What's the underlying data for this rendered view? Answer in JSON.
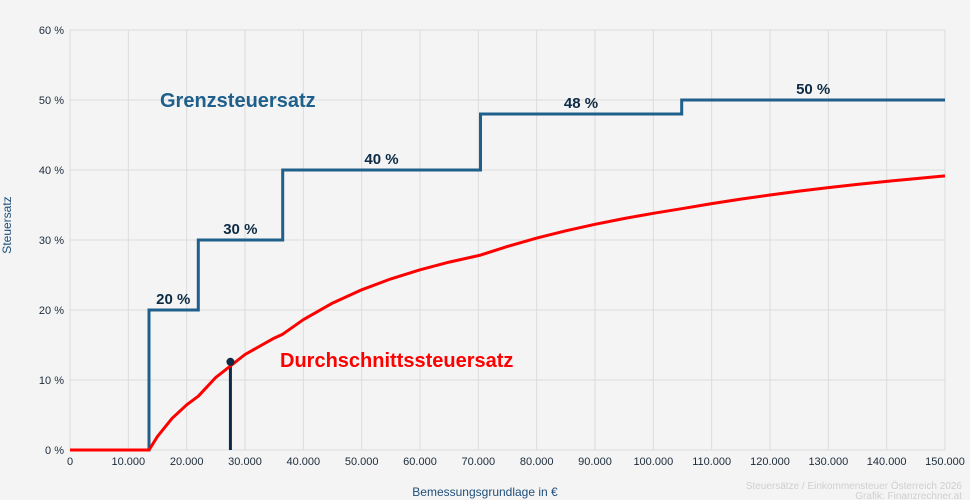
{
  "chart_data": {
    "type": "line",
    "xlabel": "Bemessungsgrundlage in €",
    "ylabel": "Steuersatz",
    "xlim": [
      0,
      150000
    ],
    "ylim": [
      0,
      60
    ],
    "grid": true,
    "x_ticks": [
      0,
      10000,
      20000,
      30000,
      40000,
      50000,
      60000,
      70000,
      80000,
      90000,
      100000,
      110000,
      120000,
      130000,
      140000,
      150000
    ],
    "x_tick_labels": [
      "0",
      "10.000",
      "20.000",
      "30.000",
      "40.000",
      "50.000",
      "60.000",
      "70.000",
      "80.000",
      "90.000",
      "100.000",
      "110.000",
      "120.000",
      "130.000",
      "140.000",
      "150.000"
    ],
    "y_ticks": [
      0,
      10,
      20,
      30,
      40,
      50,
      60
    ],
    "y_tick_labels": [
      "0 %",
      "10 %",
      "20 %",
      "30 %",
      "40 %",
      "50 %",
      "60 %"
    ],
    "series": [
      {
        "name": "Grenzsteuersatz",
        "color": "#1f5f8b",
        "step": true,
        "points": [
          [
            0,
            0
          ],
          [
            13539,
            0
          ],
          [
            13539,
            20
          ],
          [
            21992,
            20
          ],
          [
            21992,
            30
          ],
          [
            36458,
            30
          ],
          [
            36458,
            40
          ],
          [
            70365,
            40
          ],
          [
            70365,
            48
          ],
          [
            104859,
            48
          ],
          [
            104859,
            50
          ],
          [
            150000,
            50
          ]
        ],
        "step_labels": [
          {
            "text": "20 %",
            "x": 17700,
            "y": 20
          },
          {
            "text": "30 %",
            "x": 29200,
            "y": 30
          },
          {
            "text": "40 %",
            "x": 53400,
            "y": 40
          },
          {
            "text": "48 %",
            "x": 87600,
            "y": 48
          },
          {
            "text": "50 %",
            "x": 127400,
            "y": 50
          }
        ]
      },
      {
        "name": "Durchschnittssteuersatz",
        "color": "#ff0000",
        "points": [
          [
            0,
            0
          ],
          [
            13539,
            0
          ],
          [
            15000,
            1.95
          ],
          [
            17500,
            4.53
          ],
          [
            20000,
            6.46
          ],
          [
            21992,
            7.69
          ],
          [
            25000,
            10.37
          ],
          [
            30000,
            13.64
          ],
          [
            35000,
            15.98
          ],
          [
            36458,
            16.54
          ],
          [
            40000,
            18.62
          ],
          [
            45000,
            20.99
          ],
          [
            50000,
            22.89
          ],
          [
            55000,
            24.45
          ],
          [
            60000,
            25.75
          ],
          [
            65000,
            26.84
          ],
          [
            70365,
            27.85
          ],
          [
            75000,
            29.09
          ],
          [
            80000,
            30.27
          ],
          [
            85000,
            31.32
          ],
          [
            90000,
            32.24
          ],
          [
            95000,
            33.07
          ],
          [
            100000,
            33.82
          ],
          [
            104859,
            34.47
          ],
          [
            110000,
            35.2
          ],
          [
            115000,
            35.84
          ],
          [
            120000,
            36.43
          ],
          [
            125000,
            36.98
          ],
          [
            130000,
            37.48
          ],
          [
            135000,
            37.94
          ],
          [
            140000,
            38.37
          ],
          [
            145000,
            38.77
          ],
          [
            150000,
            39.15
          ]
        ]
      }
    ],
    "marker": {
      "x": 27500,
      "y": 12.6,
      "color": "#0d2b45"
    },
    "credit_lines": [
      "Steuersätze / Einkommensteuer Österreich 2026",
      "Grafik: Finanzrechner.at"
    ]
  }
}
